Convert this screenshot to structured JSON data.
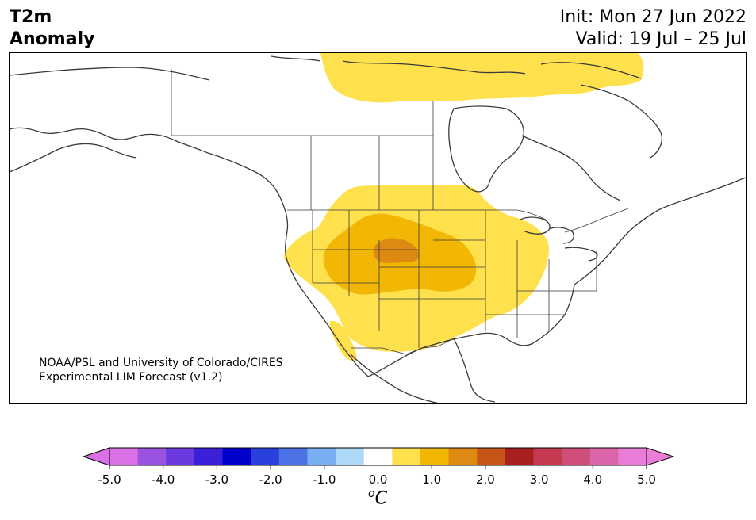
{
  "title": {
    "line1": "T2m",
    "line2": "Anomaly"
  },
  "dates": {
    "init": "Init: Mon 27 Jun 2022",
    "valid": "Valid: 19 Jul – 25 Jul"
  },
  "credit": {
    "line1": "NOAA/PSL and University of Colorado/CIRES",
    "line2": "Experimental LIM Forecast (v1.2)"
  },
  "colorbar": {
    "unit_main": "C",
    "unit_sup": "o",
    "tick_labels": [
      "-5.0",
      "-4.0",
      "-3.0",
      "-2.0",
      "-1.0",
      "0.0",
      "1.0",
      "2.0",
      "3.0",
      "4.0",
      "5.0"
    ],
    "levels": [
      -5,
      -4.5,
      -4,
      -3.5,
      -3,
      -2.5,
      -2,
      -1.5,
      -1,
      -0.5,
      0.5,
      1,
      1.5,
      2,
      2.5,
      3,
      3.5,
      4,
      4.5,
      5
    ],
    "colors": [
      "#d970e6",
      "#9a52e0",
      "#6a3ae0",
      "#3a20d8",
      "#0000cc",
      "#2a40dd",
      "#4d72e6",
      "#7aaef2",
      "#aed8f8",
      "#ffffff",
      "#ffe14d",
      "#f2b705",
      "#de8a12",
      "#c85518",
      "#a82020",
      "#c43a50",
      "#d04f7a",
      "#dc65aa",
      "#e87ed8"
    ],
    "extend_low_color": "#d970e6",
    "extend_high_color": "#e87ed8"
  },
  "colors": {
    "anomaly_plus_1": "#ffe14d",
    "anomaly_plus_2": "#f2b705",
    "anomaly_plus_2_5": "#de8a12",
    "coastline": "#3a3a3a"
  }
}
